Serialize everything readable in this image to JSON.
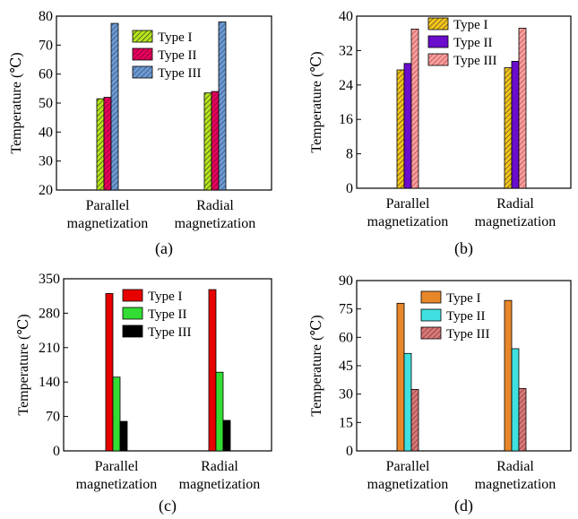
{
  "chart_data": [
    {
      "type": "bar",
      "panel_label": "(a)",
      "ylabel": "Temperature (℃)",
      "ylim": [
        20,
        80
      ],
      "yticks": [
        "20",
        "30",
        "40",
        "50",
        "60",
        "70",
        "80"
      ],
      "categories": [
        [
          "Parallel",
          "magnetization"
        ],
        [
          "Radial",
          "magnetization"
        ]
      ],
      "legend_position": "top-center",
      "series": [
        {
          "name": "Type I",
          "values": [
            51.5,
            53.5
          ],
          "color": "#b5e61d",
          "pattern": "hatch-green"
        },
        {
          "name": "Type II",
          "values": [
            52.0,
            54.0
          ],
          "color": "#e6005c",
          "pattern": "hatch-red"
        },
        {
          "name": "Type III",
          "values": [
            77.5,
            78.0
          ],
          "color": "#4f81bd",
          "pattern": "hatch-blue"
        }
      ]
    },
    {
      "type": "bar",
      "panel_label": "(b)",
      "ylabel": "Temperature (℃)",
      "ylim": [
        0,
        40
      ],
      "yticks": [
        "0",
        "8",
        "16",
        "24",
        "32",
        "40"
      ],
      "categories": [
        [
          "Parallel",
          "magnetization"
        ],
        [
          "Radial",
          "magnetization"
        ]
      ],
      "legend_position": "top-right",
      "series": [
        {
          "name": "Type I",
          "values": [
            27.5,
            28.0
          ],
          "color": "#f5c518",
          "pattern": "hatch-yellow"
        },
        {
          "name": "Type II",
          "values": [
            29.0,
            29.5
          ],
          "color": "#6a0dcc",
          "pattern": "solid"
        },
        {
          "name": "Type III",
          "values": [
            37.0,
            37.2
          ],
          "color": "#f08080",
          "pattern": "hatch-salmon"
        }
      ]
    },
    {
      "type": "bar",
      "panel_label": "(c)",
      "ylabel": "Temperature (℃)",
      "ylim": [
        0,
        350
      ],
      "yticks": [
        "0",
        "70",
        "140",
        "210",
        "280",
        "350"
      ],
      "categories": [
        [
          "Parallel",
          "magnetization"
        ],
        [
          "Radial",
          "magnetization"
        ]
      ],
      "legend_position": "top-right",
      "series": [
        {
          "name": "Type I",
          "values": [
            320,
            328
          ],
          "color": "#e60000",
          "pattern": "solid"
        },
        {
          "name": "Type II",
          "values": [
            150,
            160
          ],
          "color": "#33dd33",
          "pattern": "solid"
        },
        {
          "name": "Type III",
          "values": [
            60,
            62
          ],
          "color": "#000000",
          "pattern": "solid"
        }
      ]
    },
    {
      "type": "bar",
      "panel_label": "(d)",
      "ylabel": "Temperature (℃)",
      "ylim": [
        0,
        90
      ],
      "yticks": [
        "0",
        "15",
        "30",
        "45",
        "60",
        "75",
        "90"
      ],
      "categories": [
        [
          "Parallel",
          "magnetization"
        ],
        [
          "Radial",
          "magnetization"
        ]
      ],
      "legend_position": "top-right",
      "series": [
        {
          "name": "Type I",
          "values": [
            78,
            79.5
          ],
          "color": "#e8872a",
          "pattern": "solid"
        },
        {
          "name": "Type II",
          "values": [
            51.5,
            54
          ],
          "color": "#40e0e0",
          "pattern": "solid"
        },
        {
          "name": "Type III",
          "values": [
            32.5,
            33
          ],
          "color": "#c85a5a",
          "pattern": "hatch-rose"
        }
      ]
    }
  ]
}
